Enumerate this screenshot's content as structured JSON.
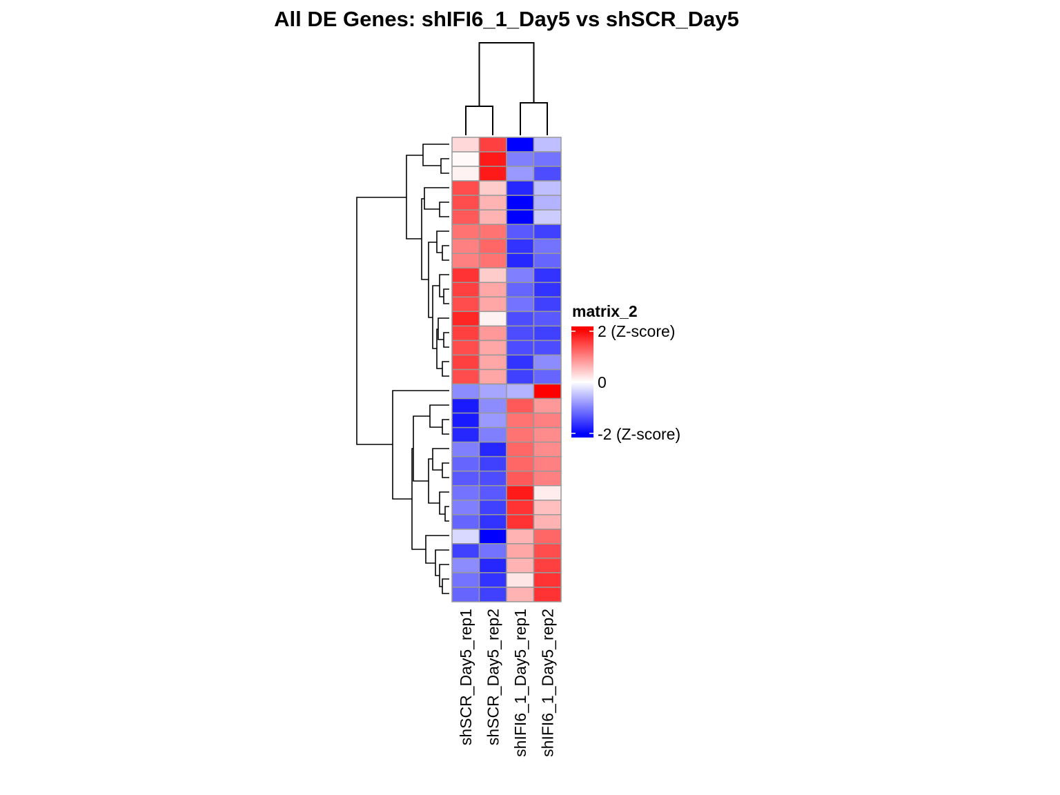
{
  "chart_data": {
    "type": "heatmap",
    "title": "All DE Genes: shIFI6_1_Day5  vs  shSCR_Day5",
    "columns": [
      "shSCR_Day5_rep1",
      "shSCR_Day5_rep2",
      "shIFI6_1_Day5_rep1",
      "shIFI6_1_Day5_rep2"
    ],
    "values": [
      [
        0.3,
        1.5,
        -2.0,
        -0.5
      ],
      [
        0.05,
        1.8,
        -1.0,
        -1.1
      ],
      [
        0.1,
        1.8,
        -0.8,
        -1.4
      ],
      [
        1.4,
        0.4,
        -1.7,
        -0.5
      ],
      [
        1.4,
        0.6,
        -2.0,
        -0.6
      ],
      [
        1.3,
        0.6,
        -2.0,
        -0.4
      ],
      [
        1.1,
        1.1,
        -1.3,
        -1.5
      ],
      [
        1.0,
        1.2,
        -1.6,
        -1.1
      ],
      [
        1.0,
        1.1,
        -1.7,
        -1.2
      ],
      [
        1.6,
        0.4,
        -1.0,
        -1.6
      ],
      [
        1.5,
        0.7,
        -1.2,
        -1.6
      ],
      [
        1.4,
        0.7,
        -1.1,
        -1.5
      ],
      [
        1.7,
        0.1,
        -1.4,
        -1.3
      ],
      [
        1.5,
        0.8,
        -1.4,
        -1.5
      ],
      [
        1.4,
        0.7,
        -1.4,
        -1.4
      ],
      [
        1.5,
        0.7,
        -1.6,
        -0.9
      ],
      [
        1.4,
        0.7,
        -1.5,
        -1.2
      ],
      [
        -0.9,
        -0.7,
        -0.6,
        2.0
      ],
      [
        -1.8,
        -0.9,
        1.3,
        0.8
      ],
      [
        -1.8,
        -0.8,
        1.1,
        1.0
      ],
      [
        -1.7,
        -1.0,
        1.1,
        0.9
      ],
      [
        -1.0,
        -1.7,
        1.2,
        0.9
      ],
      [
        -1.2,
        -1.5,
        1.2,
        1.0
      ],
      [
        -1.3,
        -1.4,
        1.3,
        1.0
      ],
      [
        -1.1,
        -1.3,
        1.8,
        0.15
      ],
      [
        -1.0,
        -1.5,
        1.6,
        0.5
      ],
      [
        -1.2,
        -1.6,
        1.6,
        0.6
      ],
      [
        -0.3,
        -2.0,
        0.6,
        1.2
      ],
      [
        -1.5,
        -1.1,
        0.7,
        1.4
      ],
      [
        -0.9,
        -1.7,
        0.6,
        1.5
      ],
      [
        -1.1,
        -1.6,
        0.2,
        1.6
      ],
      [
        -1.2,
        -1.5,
        0.6,
        1.6
      ]
    ],
    "legend": {
      "title": "matrix_2",
      "labels": [
        "2 (Z-score)",
        "0",
        "-2 (Z-score)"
      ],
      "scale": [
        2,
        0,
        -2
      ]
    },
    "colors": {
      "high": "#ff0000",
      "mid": "#ffffff",
      "low": "#0000ff",
      "border": "#999999"
    },
    "column_dendrogram": {
      "order": [
        "shSCR_Day5_rep1",
        "shSCR_Day5_rep2",
        "shIFI6_1_Day5_rep1",
        "shIFI6_1_Day5_rep2"
      ]
    },
    "row_dendrogram": true
  }
}
